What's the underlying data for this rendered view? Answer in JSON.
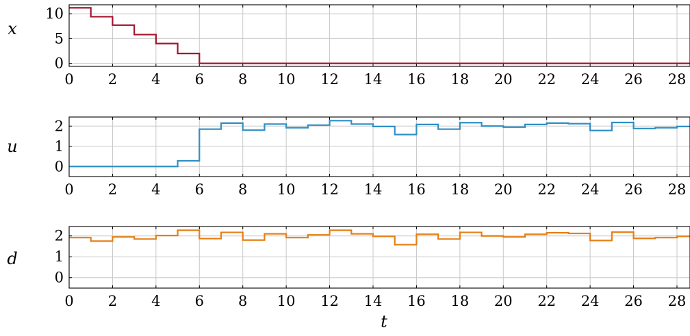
{
  "chart_data": [
    {
      "type": "line",
      "step": "post",
      "ylabel": "x",
      "xlabel": "",
      "xlim": [
        0,
        28.6
      ],
      "ylim": [
        -0.6,
        11.8
      ],
      "xticks": [
        0,
        2,
        4,
        6,
        8,
        10,
        12,
        14,
        16,
        18,
        20,
        22,
        24,
        26,
        28
      ],
      "yticks": [
        0,
        5,
        10
      ],
      "grid": true,
      "color": "#a2142f",
      "series": [
        {
          "x": [
            0,
            1,
            2,
            3,
            4,
            5,
            6,
            7,
            8,
            9,
            10,
            11,
            12,
            13,
            14,
            15,
            16,
            17,
            18,
            19,
            20,
            21,
            22,
            23,
            24,
            25,
            26,
            27,
            28,
            28.6
          ],
          "values": [
            11.2,
            9.4,
            7.7,
            5.8,
            4.0,
            2.0,
            0,
            0,
            0,
            0,
            0,
            0,
            0,
            0,
            0,
            0,
            0,
            0,
            0,
            0,
            0,
            0,
            0,
            0,
            0,
            0,
            0,
            0,
            0,
            0
          ]
        }
      ]
    },
    {
      "type": "line",
      "step": "post",
      "ylabel": "u",
      "xlabel": "",
      "xlim": [
        0,
        28.6
      ],
      "ylim": [
        -0.5,
        2.45
      ],
      "xticks": [
        0,
        2,
        4,
        6,
        8,
        10,
        12,
        14,
        16,
        18,
        20,
        22,
        24,
        26,
        28
      ],
      "yticks": [
        0,
        1,
        2
      ],
      "grid": true,
      "color": "#2f8fc4",
      "series": [
        {
          "x": [
            0,
            1,
            2,
            3,
            4,
            5,
            6,
            7,
            8,
            9,
            10,
            11,
            12,
            13,
            14,
            15,
            16,
            17,
            18,
            19,
            20,
            21,
            22,
            23,
            24,
            25,
            26,
            27,
            28,
            28.6
          ],
          "values": [
            0,
            0,
            0,
            0,
            0,
            0.28,
            1.85,
            2.15,
            1.8,
            2.1,
            1.92,
            2.05,
            2.27,
            2.1,
            1.98,
            1.58,
            2.08,
            1.85,
            2.17,
            2.0,
            1.95,
            2.08,
            2.15,
            2.12,
            1.78,
            2.18,
            1.88,
            1.92,
            1.98,
            1.98
          ]
        }
      ]
    },
    {
      "type": "line",
      "step": "post",
      "ylabel": "d",
      "xlabel": "t",
      "xlim": [
        0,
        28.6
      ],
      "ylim": [
        -0.5,
        2.45
      ],
      "xticks": [
        0,
        2,
        4,
        6,
        8,
        10,
        12,
        14,
        16,
        18,
        20,
        22,
        24,
        26,
        28
      ],
      "yticks": [
        0,
        1,
        2
      ],
      "grid": true,
      "color": "#e57f14",
      "series": [
        {
          "x": [
            0,
            1,
            2,
            3,
            4,
            5,
            6,
            7,
            8,
            9,
            10,
            11,
            12,
            13,
            14,
            15,
            16,
            17,
            18,
            19,
            20,
            21,
            22,
            23,
            24,
            25,
            26,
            27,
            28,
            28.6
          ],
          "values": [
            1.92,
            1.75,
            1.95,
            1.85,
            2.02,
            2.27,
            1.87,
            2.17,
            1.8,
            2.1,
            1.92,
            2.05,
            2.27,
            2.1,
            1.98,
            1.58,
            2.08,
            1.85,
            2.17,
            2.0,
            1.95,
            2.08,
            2.15,
            2.12,
            1.78,
            2.18,
            1.88,
            1.92,
            1.98,
            1.98
          ]
        }
      ]
    }
  ]
}
